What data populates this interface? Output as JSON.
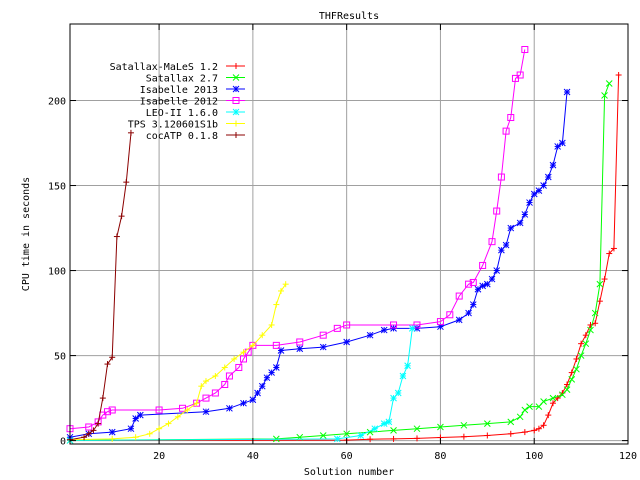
{
  "chart_data": {
    "type": "line",
    "title": "THFResults",
    "xlabel": "Solution number",
    "ylabel": "CPU time in seconds",
    "xlim": [
      1,
      120
    ],
    "ylim": [
      -2,
      245
    ],
    "xticks": [
      20,
      40,
      60,
      80,
      100,
      120
    ],
    "yticks": [
      0,
      50,
      100,
      150,
      200
    ],
    "grid": true,
    "legend_position": "top-left",
    "series": [
      {
        "name": "Satallax-MaLeS 1.2",
        "color": "#ff0000",
        "marker": "plus",
        "points": [
          [
            1,
            0.1
          ],
          [
            60,
            0.3
          ],
          [
            65,
            0.8
          ],
          [
            70,
            1
          ],
          [
            75,
            1.3
          ],
          [
            80,
            1.8
          ],
          [
            85,
            2.3
          ],
          [
            90,
            3
          ],
          [
            95,
            4
          ],
          [
            98,
            5
          ],
          [
            100,
            6
          ],
          [
            101,
            7
          ],
          [
            102,
            9
          ],
          [
            103,
            15
          ],
          [
            104,
            22
          ],
          [
            105,
            25
          ],
          [
            106,
            28
          ],
          [
            107,
            33
          ],
          [
            108,
            40
          ],
          [
            109,
            48
          ],
          [
            110,
            57
          ],
          [
            111,
            62
          ],
          [
            112,
            68
          ],
          [
            113,
            69
          ],
          [
            114,
            82
          ],
          [
            115,
            95
          ],
          [
            116,
            110
          ],
          [
            117,
            113
          ],
          [
            118,
            215
          ]
        ]
      },
      {
        "name": "Satallax 2.7",
        "color": "#00ff00",
        "marker": "cross",
        "points": [
          [
            1,
            0.1
          ],
          [
            45,
            1
          ],
          [
            50,
            2
          ],
          [
            55,
            3
          ],
          [
            60,
            4
          ],
          [
            65,
            5
          ],
          [
            70,
            6
          ],
          [
            75,
            7
          ],
          [
            80,
            8
          ],
          [
            85,
            9
          ],
          [
            90,
            10
          ],
          [
            95,
            11
          ],
          [
            97,
            14
          ],
          [
            98,
            18
          ],
          [
            99,
            20
          ],
          [
            101,
            20
          ],
          [
            102,
            23
          ],
          [
            104,
            25
          ],
          [
            106,
            27
          ],
          [
            107,
            30
          ],
          [
            108,
            36
          ],
          [
            109,
            42
          ],
          [
            110,
            50
          ],
          [
            111,
            57
          ],
          [
            112,
            65
          ],
          [
            113,
            75
          ],
          [
            114,
            92
          ],
          [
            115,
            203
          ],
          [
            116,
            210
          ]
        ]
      },
      {
        "name": "Isabelle 2013",
        "color": "#0000ff",
        "marker": "star",
        "points": [
          [
            1,
            2
          ],
          [
            5,
            4
          ],
          [
            10,
            5
          ],
          [
            14,
            7
          ],
          [
            15,
            13
          ],
          [
            16,
            15
          ],
          [
            30,
            17
          ],
          [
            35,
            19
          ],
          [
            38,
            22
          ],
          [
            40,
            24
          ],
          [
            41,
            28
          ],
          [
            42,
            32
          ],
          [
            43,
            37
          ],
          [
            44,
            40
          ],
          [
            45,
            43
          ],
          [
            46,
            53
          ],
          [
            50,
            54
          ],
          [
            55,
            55
          ],
          [
            60,
            58
          ],
          [
            65,
            62
          ],
          [
            68,
            65
          ],
          [
            70,
            66
          ],
          [
            75,
            66
          ],
          [
            80,
            67
          ],
          [
            84,
            71
          ],
          [
            86,
            75
          ],
          [
            87,
            80
          ],
          [
            88,
            89
          ],
          [
            89,
            91
          ],
          [
            90,
            92
          ],
          [
            91,
            95
          ],
          [
            92,
            100
          ],
          [
            93,
            112
          ],
          [
            94,
            115
          ],
          [
            95,
            125
          ],
          [
            97,
            128
          ],
          [
            98,
            133
          ],
          [
            99,
            140
          ],
          [
            100,
            145
          ],
          [
            101,
            147
          ],
          [
            102,
            150
          ],
          [
            103,
            155
          ],
          [
            104,
            162
          ],
          [
            105,
            173
          ],
          [
            106,
            175
          ],
          [
            107,
            205
          ]
        ]
      },
      {
        "name": "Isabelle 2012",
        "color": "#ff00ff",
        "marker": "box",
        "points": [
          [
            1,
            7
          ],
          [
            5,
            8
          ],
          [
            7,
            11
          ],
          [
            8,
            15
          ],
          [
            9,
            17
          ],
          [
            10,
            18
          ],
          [
            20,
            18
          ],
          [
            25,
            19
          ],
          [
            28,
            22
          ],
          [
            30,
            25
          ],
          [
            32,
            28
          ],
          [
            34,
            33
          ],
          [
            35,
            38
          ],
          [
            37,
            43
          ],
          [
            38,
            48
          ],
          [
            39,
            52
          ],
          [
            40,
            56
          ],
          [
            45,
            56
          ],
          [
            50,
            58
          ],
          [
            55,
            62
          ],
          [
            58,
            66
          ],
          [
            60,
            68
          ],
          [
            70,
            68
          ],
          [
            75,
            68
          ],
          [
            80,
            70
          ],
          [
            82,
            74
          ],
          [
            84,
            85
          ],
          [
            86,
            92
          ],
          [
            87,
            93
          ],
          [
            89,
            103
          ],
          [
            91,
            117
          ],
          [
            92,
            135
          ],
          [
            93,
            155
          ],
          [
            94,
            182
          ],
          [
            95,
            190
          ],
          [
            96,
            213
          ],
          [
            97,
            215
          ],
          [
            98,
            230
          ]
        ]
      },
      {
        "name": "LEO-II 1.6.0",
        "color": "#00ffff",
        "marker": "star",
        "points": [
          [
            1,
            0.1
          ],
          [
            58,
            1
          ],
          [
            63,
            3
          ],
          [
            66,
            7
          ],
          [
            68,
            10
          ],
          [
            69,
            11
          ],
          [
            70,
            25
          ],
          [
            71,
            28
          ],
          [
            72,
            38
          ],
          [
            73,
            44
          ],
          [
            74,
            66
          ]
        ]
      },
      {
        "name": "TPS 3.120601S1b",
        "color": "#ffff00",
        "marker": "plus",
        "points": [
          [
            1,
            0.5
          ],
          [
            10,
            1
          ],
          [
            15,
            2
          ],
          [
            18,
            4
          ],
          [
            20,
            7
          ],
          [
            22,
            10
          ],
          [
            24,
            14
          ],
          [
            26,
            18
          ],
          [
            28,
            22
          ],
          [
            29,
            32
          ],
          [
            30,
            35
          ],
          [
            32,
            38
          ],
          [
            34,
            43
          ],
          [
            36,
            48
          ],
          [
            38,
            52
          ],
          [
            40,
            56
          ],
          [
            42,
            62
          ],
          [
            44,
            68
          ],
          [
            45,
            80
          ],
          [
            46,
            88
          ],
          [
            47,
            92
          ]
        ]
      },
      {
        "name": "cocATP 0.1.8",
        "color": "#8b0000",
        "marker": "plus",
        "points": [
          [
            1,
            0.5
          ],
          [
            4,
            2
          ],
          [
            5,
            4
          ],
          [
            6,
            6
          ],
          [
            7,
            10
          ],
          [
            8,
            25
          ],
          [
            9,
            45
          ],
          [
            10,
            49
          ],
          [
            11,
            120
          ],
          [
            12,
            132
          ],
          [
            13,
            152
          ],
          [
            14,
            181
          ]
        ]
      }
    ]
  }
}
